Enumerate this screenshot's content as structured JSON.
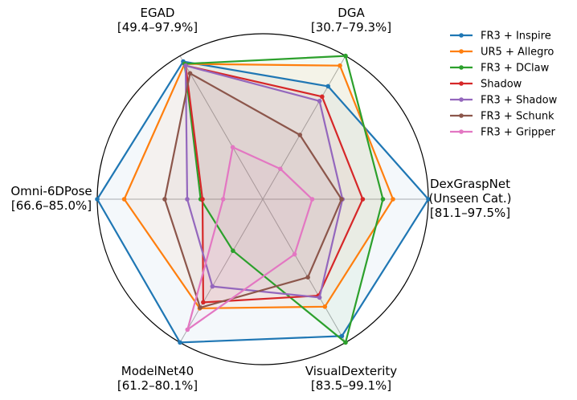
{
  "chart_data": {
    "type": "radar",
    "axes": [
      {
        "name": "DexGraspNet",
        "sub": "(Unseen Cat.)",
        "range_label": "[81.1–97.5%]",
        "min": 81.1,
        "max": 97.5
      },
      {
        "name": "DGA",
        "sub": "",
        "range_label": "[30.7–79.3%]",
        "min": 30.7,
        "max": 79.3
      },
      {
        "name": "EGAD",
        "sub": "",
        "range_label": "[49.4–97.9%]",
        "min": 49.4,
        "max": 97.9
      },
      {
        "name": "Omni-6DPose",
        "sub": "",
        "range_label": "[66.6–85.0%]",
        "min": 66.6,
        "max": 85.0
      },
      {
        "name": "ModelNet40",
        "sub": "",
        "range_label": "[61.2–80.1%]",
        "min": 61.2,
        "max": 80.1
      },
      {
        "name": "VisualDexterity",
        "sub": "",
        "range_label": "[83.5–99.1%]",
        "min": 83.5,
        "max": 99.1
      }
    ],
    "series": [
      {
        "name": "FR3 + Inspire",
        "color": "#1f77b4",
        "values": [
          97.5,
          69.0,
          96.0,
          85.0,
          80.1,
          98.4
        ]
      },
      {
        "name": "UR5 + Allegro",
        "color": "#ff7f0e",
        "values": [
          94.0,
          76.0,
          95.2,
          82.0,
          75.6,
          95.2
        ]
      },
      {
        "name": "FR3 + DClaw",
        "color": "#2ca02c",
        "values": [
          93.0,
          79.3,
          95.2,
          73.5,
          68.0,
          99.1
        ]
      },
      {
        "name": "Shadow",
        "color": "#d62728",
        "values": [
          91.0,
          65.5,
          94.6,
          73.3,
          74.8,
          94.0
        ]
      },
      {
        "name": "FR3 + Shadow",
        "color": "#9467bd",
        "values": [
          89.0,
          64.0,
          94.6,
          75.0,
          72.7,
          94.2
        ]
      },
      {
        "name": "FR3 + Schunk",
        "color": "#8c564b",
        "values": [
          88.9,
          52.5,
          92.0,
          77.5,
          75.5,
          92.0
        ]
      },
      {
        "name": "FR3 + Gripper",
        "color": "#e377c2",
        "values": [
          86.0,
          41.0,
          67.0,
          71.0,
          78.4,
          89.5
        ]
      }
    ]
  }
}
